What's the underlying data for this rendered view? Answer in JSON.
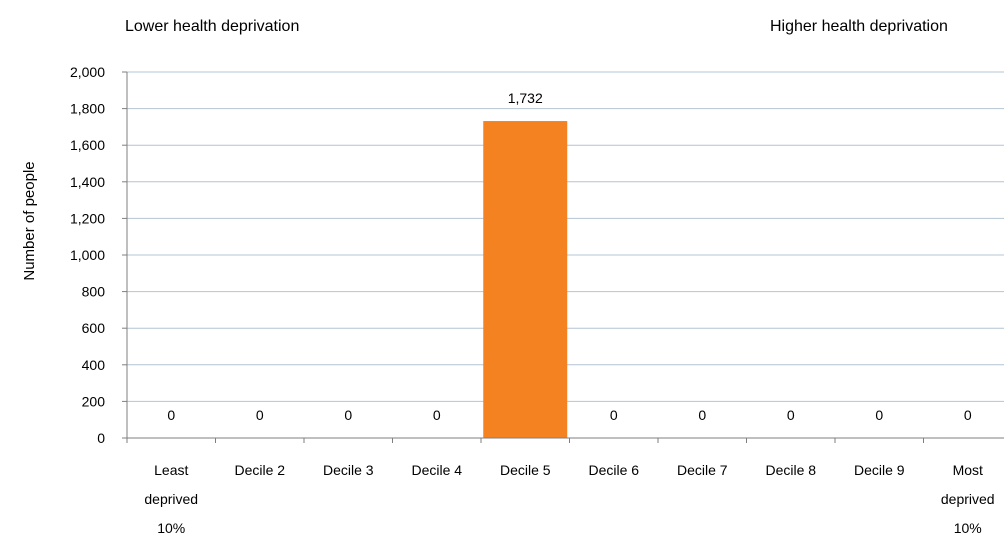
{
  "chart_data": {
    "type": "bar",
    "ylabel": "Number of people",
    "ylim": [
      0,
      2000
    ],
    "y_ticks": [
      "0",
      "200",
      "400",
      "600",
      "800",
      "1,000",
      "1,200",
      "1,400",
      "1,600",
      "1,800",
      "2,000"
    ],
    "y_tick_values": [
      0,
      200,
      400,
      600,
      800,
      1000,
      1200,
      1400,
      1600,
      1800,
      2000
    ],
    "grid": true,
    "categories": [
      [
        "Least",
        "deprived",
        "10%"
      ],
      [
        "Decile 2"
      ],
      [
        "Decile 3"
      ],
      [
        "Decile 4"
      ],
      [
        "Decile 5"
      ],
      [
        "Decile 6"
      ],
      [
        "Decile 7"
      ],
      [
        "Decile 8"
      ],
      [
        "Decile 9"
      ],
      [
        "Most",
        "deprived",
        "10%"
      ]
    ],
    "values": [
      0,
      0,
      0,
      0,
      1732,
      0,
      0,
      0,
      0,
      0
    ],
    "data_labels": [
      "0",
      "0",
      "0",
      "0",
      "1,732",
      "0",
      "0",
      "0",
      "0",
      "0"
    ],
    "annotations": {
      "left": "Lower health deprivation",
      "right": "Higher health deprivation"
    },
    "colors": {
      "bar": "#f58220",
      "grid": "#b4c4d4",
      "axis": "#7f7f7f"
    }
  }
}
